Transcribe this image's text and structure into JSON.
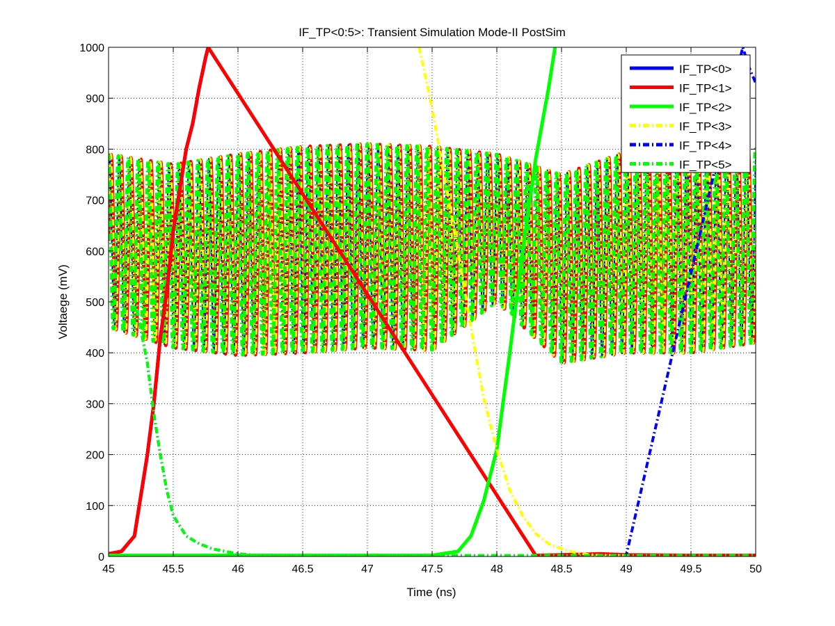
{
  "chart_data": {
    "type": "line",
    "title": "IF_TP<0:5>: Transient Simulation Mode-II PostSim",
    "xlabel": "Time (ns)",
    "ylabel": "Voltaege (mV)",
    "xlim": [
      45,
      50
    ],
    "ylim": [
      0,
      1000
    ],
    "xticks": [
      45,
      45.5,
      46,
      46.5,
      47,
      47.5,
      48,
      48.5,
      49,
      49.5,
      50
    ],
    "xtick_labels": [
      "45",
      "45.5",
      "46",
      "46.5",
      "47",
      "47.5",
      "48",
      "48.5",
      "49",
      "49.5",
      "50"
    ],
    "yticks": [
      0,
      100,
      200,
      300,
      400,
      500,
      600,
      700,
      800,
      900,
      1000
    ],
    "ytick_labels": [
      "0",
      "100",
      "200",
      "300",
      "400",
      "500",
      "600",
      "700",
      "800",
      "900",
      "1000"
    ],
    "grid": true,
    "legend_position": "top-right",
    "series": [
      {
        "name": "IF_TP<0>",
        "color": "#0000ff",
        "style": "solid",
        "x": [
          45,
          45.1,
          45.2,
          45.3,
          45.35,
          45.4,
          45.45,
          45.5,
          45.55,
          45.6,
          45.65,
          45.7,
          45.75,
          45.77
        ],
        "values": [
          5,
          10,
          40,
          200,
          300,
          430,
          520,
          640,
          720,
          800,
          850,
          920,
          980,
          1000
        ]
      },
      {
        "name": "IF_TP<1>",
        "color": "#ff0000",
        "style": "solid",
        "x": [
          45,
          45.1,
          45.2,
          45.3,
          45.35,
          45.4,
          45.45,
          45.5,
          45.55,
          45.6,
          45.65,
          45.7,
          45.75,
          45.77,
          48.3,
          48.5,
          48.8,
          49,
          49.5,
          50
        ],
        "values": [
          5,
          10,
          40,
          200,
          300,
          430,
          520,
          640,
          720,
          800,
          850,
          920,
          980,
          1000,
          2,
          3,
          5,
          3,
          2,
          2
        ]
      },
      {
        "name": "IF_TP<2>",
        "color": "#00ff00",
        "style": "solid",
        "x": [
          45,
          46,
          47,
          47.5,
          47.7,
          47.8,
          47.9,
          48,
          48.1,
          48.2,
          48.3,
          48.4,
          48.45
        ],
        "values": [
          2,
          2,
          2,
          2,
          10,
          40,
          110,
          210,
          400,
          600,
          780,
          920,
          1000
        ]
      },
      {
        "name": "IF_TP<3>",
        "color": "#ffff00",
        "style": "dashdot",
        "x": [
          47.4,
          47.5,
          47.6,
          47.7,
          47.8,
          47.9,
          48,
          48.1,
          48.2,
          48.3,
          48.4,
          48.5,
          48.6,
          48.7,
          48.8,
          49
        ],
        "values": [
          1000,
          880,
          740,
          600,
          450,
          310,
          210,
          130,
          80,
          45,
          25,
          15,
          8,
          4,
          2,
          2
        ]
      },
      {
        "name": "IF_TP<4>",
        "color": "#0000ff",
        "style": "dashdot",
        "x": [
          45.2,
          45.3,
          45.35,
          45.4,
          45.45,
          45.5,
          45.6,
          45.7,
          45.8,
          45.9,
          46,
          46.1,
          46.3,
          47,
          48,
          49,
          49.9,
          49.95,
          50
        ],
        "values": [
          510,
          380,
          280,
          200,
          130,
          80,
          40,
          25,
          15,
          10,
          5,
          3,
          2,
          2,
          2,
          2,
          1000,
          960,
          930
        ]
      },
      {
        "name": "IF_TP<5>",
        "color": "#00ff00",
        "style": "dashdot",
        "x": [
          45.2,
          45.3,
          45.35,
          45.4,
          45.45,
          45.5,
          45.6,
          45.7,
          45.8,
          45.9,
          46,
          46.1,
          46.3,
          47,
          48,
          49,
          50
        ],
        "values": [
          510,
          380,
          280,
          200,
          130,
          80,
          40,
          25,
          15,
          10,
          5,
          3,
          2,
          2,
          2,
          2,
          2
        ]
      }
    ],
    "oscillation_bands": [
      {
        "series": [
          "IF_TP<1>",
          "IF_TP<3>",
          "IF_TP<4>",
          "IF_TP<5>"
        ],
        "cycles_per_ns": 13,
        "x": [
          45,
          45.5,
          46,
          46.5,
          47,
          47.5,
          48,
          48.5,
          49,
          49.5,
          50
        ],
        "upper": [
          790,
          770,
          790,
          805,
          810,
          805,
          790,
          750,
          795,
          810,
          800
        ],
        "lower": [
          450,
          410,
          395,
          400,
          410,
          405,
          500,
          380,
          400,
          400,
          420
        ]
      }
    ]
  }
}
